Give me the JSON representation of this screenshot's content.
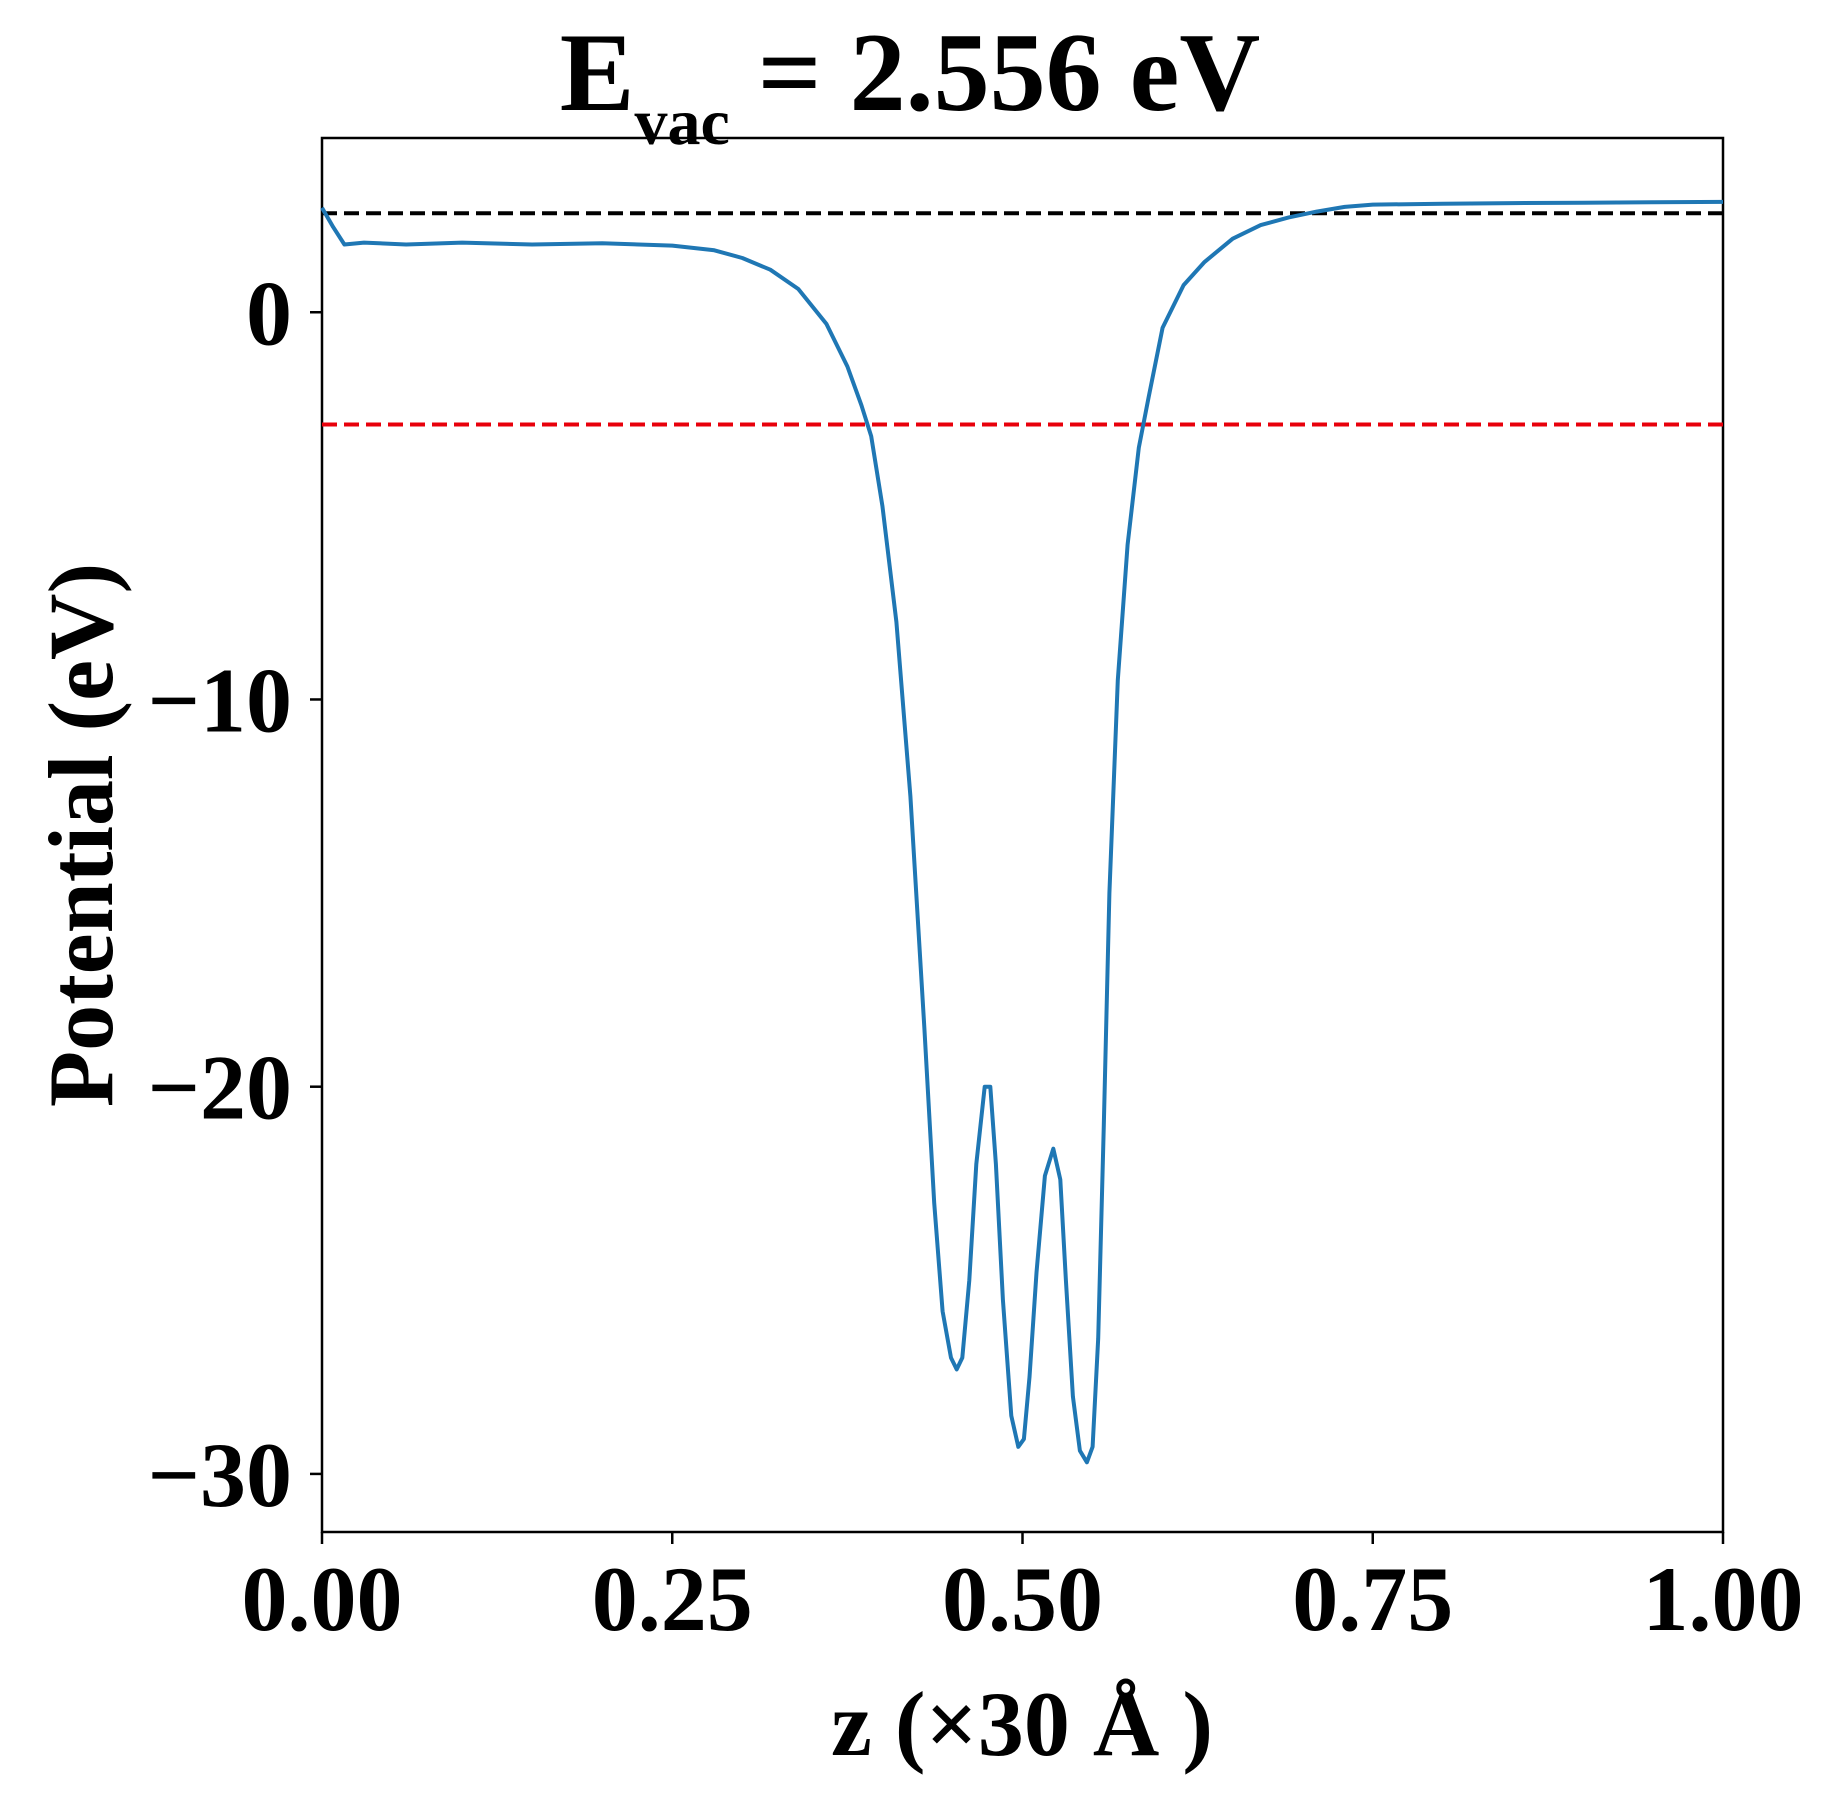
{
  "chart_data": {
    "type": "line",
    "title": {
      "main": "E",
      "subscript": "vac",
      "rest": " = 2.556 eV"
    },
    "xlabel": "z (×30 Å )",
    "ylabel": "Potential (eV)",
    "xlim": [
      0,
      1
    ],
    "ylim": [
      -31.5,
      4.5
    ],
    "xticks": [
      0.0,
      0.25,
      0.5,
      0.75,
      1.0
    ],
    "xtick_labels": [
      "0.00",
      "0.25",
      "0.50",
      "0.75",
      "1.00"
    ],
    "yticks": [
      0,
      -10,
      -20,
      -30
    ],
    "ytick_labels": [
      "0",
      "−10",
      "−20",
      "−30"
    ],
    "grid": false,
    "legend": "none",
    "hlines": [
      {
        "y": 2.556,
        "color": "#000000",
        "style": "dashed"
      },
      {
        "y": -2.9,
        "color": "#e8000b",
        "style": "dashed"
      }
    ],
    "series": [
      {
        "color": "#1f77b4",
        "x": [
          0.0,
          0.008,
          0.016,
          0.03,
          0.06,
          0.1,
          0.15,
          0.2,
          0.25,
          0.28,
          0.3,
          0.32,
          0.34,
          0.36,
          0.375,
          0.385,
          0.392,
          0.4,
          0.41,
          0.42,
          0.43,
          0.437,
          0.443,
          0.449,
          0.453,
          0.457,
          0.462,
          0.467,
          0.473,
          0.477,
          0.481,
          0.486,
          0.492,
          0.497,
          0.501,
          0.505,
          0.51,
          0.516,
          0.522,
          0.527,
          0.531,
          0.536,
          0.541,
          0.546,
          0.55,
          0.554,
          0.558,
          0.562,
          0.568,
          0.575,
          0.583,
          0.59,
          0.6,
          0.615,
          0.63,
          0.65,
          0.67,
          0.69,
          0.71,
          0.73,
          0.75,
          0.8,
          0.85,
          0.9,
          0.95,
          1.0
        ],
        "y": [
          2.7,
          2.2,
          1.75,
          1.8,
          1.75,
          1.8,
          1.75,
          1.78,
          1.72,
          1.6,
          1.4,
          1.1,
          0.6,
          -0.3,
          -1.4,
          -2.4,
          -3.2,
          -5.0,
          -8.0,
          -12.5,
          -18.5,
          -23.0,
          -25.8,
          -27.0,
          -27.3,
          -27.0,
          -25.0,
          -22.0,
          -20.0,
          -20.0,
          -22.0,
          -25.5,
          -28.5,
          -29.3,
          -29.1,
          -27.5,
          -24.8,
          -22.3,
          -21.6,
          -22.4,
          -25.0,
          -28.0,
          -29.4,
          -29.7,
          -29.3,
          -26.5,
          -21.0,
          -15.0,
          -9.5,
          -6.0,
          -3.5,
          -2.2,
          -0.4,
          0.7,
          1.3,
          1.9,
          2.25,
          2.45,
          2.6,
          2.72,
          2.78,
          2.8,
          2.82,
          2.83,
          2.84,
          2.85
        ]
      }
    ]
  }
}
